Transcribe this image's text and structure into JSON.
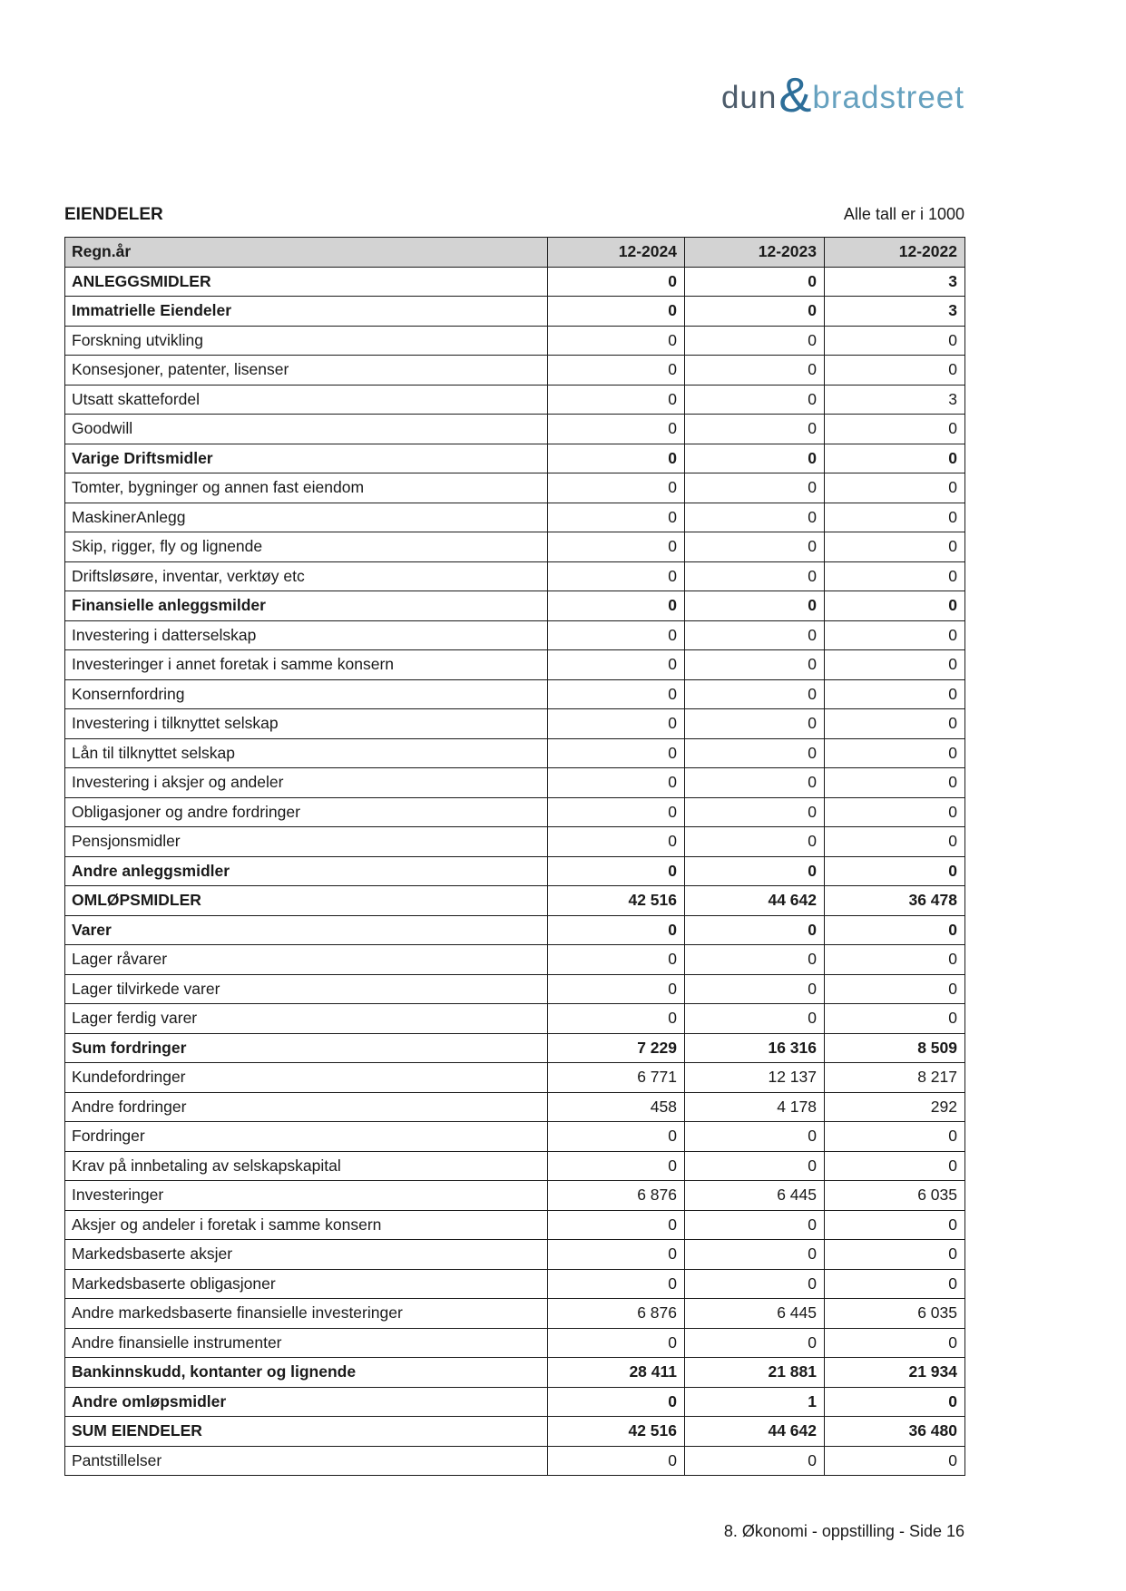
{
  "logo": {
    "dun": "dun",
    "amp": "&",
    "bradstreet": "bradstreet"
  },
  "colors": {
    "logo_dun": "#4d5c6b",
    "logo_ampersand": "#2d6e99",
    "logo_bradstreet": "#66a1bf",
    "table_header_bg": "#d3d3d3",
    "table_border": "#1a1a1a"
  },
  "table": {
    "title": "EIENDELER",
    "note": "Alle tall er i 1000",
    "header": {
      "label": "Regn.år",
      "cols": [
        "12-2024",
        "12-2023",
        "12-2022"
      ]
    },
    "rows": [
      {
        "label": "ANLEGGSMIDLER",
        "values": [
          "0",
          "0",
          "3"
        ],
        "bold": true
      },
      {
        "label": "Immatrielle Eiendeler",
        "values": [
          "0",
          "0",
          "3"
        ],
        "bold": true
      },
      {
        "label": "Forskning utvikling",
        "values": [
          "0",
          "0",
          "0"
        ],
        "bold": false
      },
      {
        "label": "Konsesjoner, patenter, lisenser",
        "values": [
          "0",
          "0",
          "0"
        ],
        "bold": false
      },
      {
        "label": "Utsatt skattefordel",
        "values": [
          "0",
          "0",
          "3"
        ],
        "bold": false
      },
      {
        "label": "Goodwill",
        "values": [
          "0",
          "0",
          "0"
        ],
        "bold": false
      },
      {
        "label": "Varige Driftsmidler",
        "values": [
          "0",
          "0",
          "0"
        ],
        "bold": true
      },
      {
        "label": "Tomter, bygninger og annen fast eiendom",
        "values": [
          "0",
          "0",
          "0"
        ],
        "bold": false
      },
      {
        "label": "MaskinerAnlegg",
        "values": [
          "0",
          "0",
          "0"
        ],
        "bold": false
      },
      {
        "label": "Skip, rigger, fly og lignende",
        "values": [
          "0",
          "0",
          "0"
        ],
        "bold": false
      },
      {
        "label": "Driftsløsøre, inventar, verktøy etc",
        "values": [
          "0",
          "0",
          "0"
        ],
        "bold": false
      },
      {
        "label": "Finansielle anleggsmilder",
        "values": [
          "0",
          "0",
          "0"
        ],
        "bold": true
      },
      {
        "label": "Investering i datterselskap",
        "values": [
          "0",
          "0",
          "0"
        ],
        "bold": false
      },
      {
        "label": "Investeringer i annet foretak i samme konsern",
        "values": [
          "0",
          "0",
          "0"
        ],
        "bold": false
      },
      {
        "label": "Konsernfordring",
        "values": [
          "0",
          "0",
          "0"
        ],
        "bold": false
      },
      {
        "label": "Investering i tilknyttet selskap",
        "values": [
          "0",
          "0",
          "0"
        ],
        "bold": false
      },
      {
        "label": "Lån til tilknyttet selskap",
        "values": [
          "0",
          "0",
          "0"
        ],
        "bold": false
      },
      {
        "label": "Investering i aksjer og andeler",
        "values": [
          "0",
          "0",
          "0"
        ],
        "bold": false
      },
      {
        "label": "Obligasjoner og andre fordringer",
        "values": [
          "0",
          "0",
          "0"
        ],
        "bold": false
      },
      {
        "label": "Pensjonsmidler",
        "values": [
          "0",
          "0",
          "0"
        ],
        "bold": false
      },
      {
        "label": "Andre anleggsmidler",
        "values": [
          "0",
          "0",
          "0"
        ],
        "bold": true
      },
      {
        "label": "OMLØPSMIDLER",
        "values": [
          "42 516",
          "44 642",
          "36 478"
        ],
        "bold": true
      },
      {
        "label": "Varer",
        "values": [
          "0",
          "0",
          "0"
        ],
        "bold": true
      },
      {
        "label": "Lager råvarer",
        "values": [
          "0",
          "0",
          "0"
        ],
        "bold": false
      },
      {
        "label": "Lager tilvirkede varer",
        "values": [
          "0",
          "0",
          "0"
        ],
        "bold": false
      },
      {
        "label": "Lager ferdig varer",
        "values": [
          "0",
          "0",
          "0"
        ],
        "bold": false
      },
      {
        "label": "Sum fordringer",
        "values": [
          "7 229",
          "16 316",
          "8 509"
        ],
        "bold": true
      },
      {
        "label": "Kundefordringer",
        "values": [
          "6 771",
          "12 137",
          "8 217"
        ],
        "bold": false
      },
      {
        "label": "Andre fordringer",
        "values": [
          "458",
          "4 178",
          "292"
        ],
        "bold": false
      },
      {
        "label": "Fordringer",
        "values": [
          "0",
          "0",
          "0"
        ],
        "bold": false
      },
      {
        "label": "Krav på innbetaling av selskapskapital",
        "values": [
          "0",
          "0",
          "0"
        ],
        "bold": false
      },
      {
        "label": "Investeringer",
        "values": [
          "6 876",
          "6 445",
          "6 035"
        ],
        "bold": false
      },
      {
        "label": "Aksjer og andeler i foretak i samme konsern",
        "values": [
          "0",
          "0",
          "0"
        ],
        "bold": false
      },
      {
        "label": "Markedsbaserte aksjer",
        "values": [
          "0",
          "0",
          "0"
        ],
        "bold": false
      },
      {
        "label": "Markedsbaserte obligasjoner",
        "values": [
          "0",
          "0",
          "0"
        ],
        "bold": false
      },
      {
        "label": "Andre markedsbaserte finansielle investeringer",
        "values": [
          "6 876",
          "6 445",
          "6 035"
        ],
        "bold": false
      },
      {
        "label": "Andre finansielle instrumenter",
        "values": [
          "0",
          "0",
          "0"
        ],
        "bold": false
      },
      {
        "label": "Bankinnskudd, kontanter og lignende",
        "values": [
          "28 411",
          "21 881",
          "21 934"
        ],
        "bold": true
      },
      {
        "label": "Andre omløpsmidler",
        "values": [
          "0",
          "1",
          "0"
        ],
        "bold": true
      },
      {
        "label": "SUM EIENDELER",
        "values": [
          "42 516",
          "44 642",
          "36 480"
        ],
        "bold": true
      },
      {
        "label": "Pantstillelser",
        "values": [
          "0",
          "0",
          "0"
        ],
        "bold": false
      }
    ]
  },
  "footer": {
    "text": "8. Økonomi - oppstilling - Side 16"
  }
}
